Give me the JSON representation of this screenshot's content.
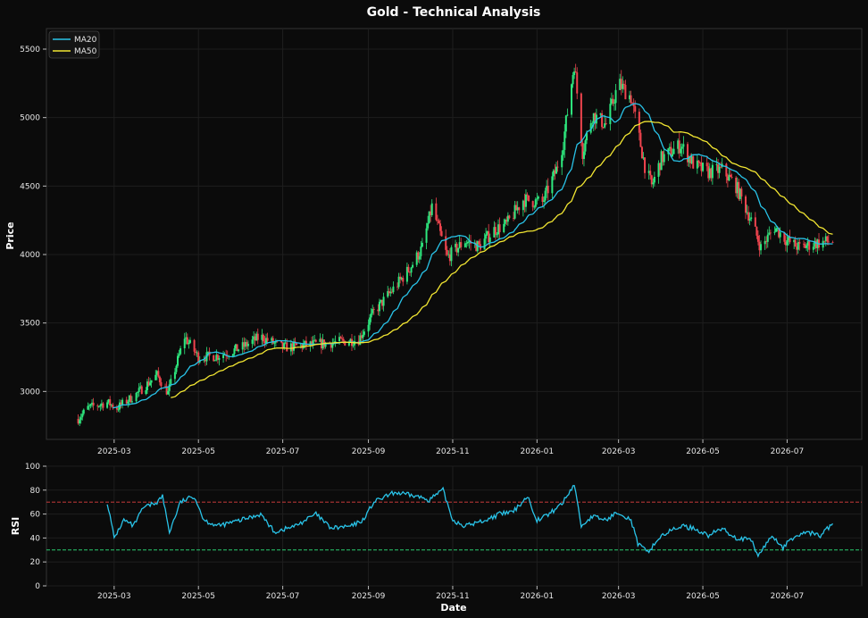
{
  "chart_data": [
    {
      "type": "candlestick",
      "title": "Gold - Technical Analysis",
      "xlabel": "",
      "ylabel": "Price",
      "ylim": [
        2650,
        5650
      ],
      "yticks": [
        3000,
        3500,
        4000,
        4500,
        5000,
        5500
      ],
      "xticks": [
        "2025-03",
        "2025-05",
        "2025-07",
        "2025-09",
        "2025-11",
        "2026-01",
        "2026-03",
        "2026-05",
        "2026-07"
      ],
      "xlim": [
        "2025-01-11",
        "2026-08-24"
      ],
      "grid": true,
      "legend": "top-left",
      "up_color": "#2ee87e",
      "down_color": "#f0444e",
      "anchors": [
        [
          "2025-02-03",
          2800
        ],
        [
          "2025-02-10",
          2880
        ],
        [
          "2025-02-24",
          2920
        ],
        [
          "2025-03-03",
          2880
        ],
        [
          "2025-03-17",
          2980
        ],
        [
          "2025-04-01",
          3120
        ],
        [
          "2025-04-09",
          2990
        ],
        [
          "2025-04-21",
          3400
        ],
        [
          "2025-05-01",
          3250
        ],
        [
          "2025-05-15",
          3260
        ],
        [
          "2025-06-01",
          3320
        ],
        [
          "2025-06-15",
          3400
        ],
        [
          "2025-07-01",
          3320
        ],
        [
          "2025-07-20",
          3340
        ],
        [
          "2025-08-10",
          3360
        ],
        [
          "2025-08-25",
          3380
        ],
        [
          "2025-09-05",
          3580
        ],
        [
          "2025-09-20",
          3760
        ],
        [
          "2025-10-01",
          3900
        ],
        [
          "2025-10-10",
          4050
        ],
        [
          "2025-10-17",
          4350
        ],
        [
          "2025-10-28",
          3980
        ],
        [
          "2025-11-10",
          4100
        ],
        [
          "2025-11-20",
          4060
        ],
        [
          "2025-12-01",
          4180
        ],
        [
          "2025-12-10",
          4220
        ],
        [
          "2025-12-22",
          4400
        ],
        [
          "2026-01-05",
          4380
        ],
        [
          "2026-01-15",
          4620
        ],
        [
          "2026-01-20",
          4820
        ],
        [
          "2026-01-28",
          5400
        ],
        [
          "2026-02-03",
          4750
        ],
        [
          "2026-02-10",
          5020
        ],
        [
          "2026-02-20",
          4950
        ],
        [
          "2026-03-01",
          5250
        ],
        [
          "2026-03-10",
          5150
        ],
        [
          "2026-03-20",
          4650
        ],
        [
          "2026-03-25",
          4500
        ],
        [
          "2026-04-01",
          4700
        ],
        [
          "2026-04-15",
          4800
        ],
        [
          "2026-04-25",
          4650
        ],
        [
          "2026-05-05",
          4600
        ],
        [
          "2026-05-15",
          4620
        ],
        [
          "2026-05-25",
          4500
        ],
        [
          "2026-06-05",
          4250
        ],
        [
          "2026-06-12",
          4050
        ],
        [
          "2026-06-22",
          4200
        ],
        [
          "2026-07-01",
          4100
        ],
        [
          "2026-07-10",
          4050
        ],
        [
          "2026-07-20",
          4080
        ],
        [
          "2026-08-03",
          4100
        ]
      ],
      "series": [
        {
          "name": "MA20",
          "color": "#29c3e8"
        },
        {
          "name": "MA50",
          "color": "#f2e632"
        }
      ]
    },
    {
      "type": "line",
      "title": "",
      "xlabel": "Date",
      "ylabel": "RSI",
      "ylim": [
        0,
        100
      ],
      "yticks": [
        0,
        20,
        40,
        60,
        80,
        100
      ],
      "xticks": [
        "2025-03",
        "2025-05",
        "2025-07",
        "2025-09",
        "2025-11",
        "2026-01",
        "2026-03",
        "2026-05",
        "2026-07"
      ],
      "xlim": [
        "2025-01-11",
        "2026-08-24"
      ],
      "grid": true,
      "reference_lines": [
        {
          "value": 70,
          "color": "#e04040"
        },
        {
          "value": 30,
          "color": "#2ee87e"
        }
      ],
      "series": [
        {
          "name": "",
          "color": "#29c3e8",
          "points": [
            [
              "2025-02-24",
              70
            ],
            [
              "2025-03-01",
              40
            ],
            [
              "2025-03-08",
              55
            ],
            [
              "2025-03-15",
              50
            ],
            [
              "2025-03-22",
              65
            ],
            [
              "2025-04-01",
              70
            ],
            [
              "2025-04-05",
              75
            ],
            [
              "2025-04-10",
              45
            ],
            [
              "2025-04-18",
              70
            ],
            [
              "2025-04-28",
              75
            ],
            [
              "2025-05-05",
              55
            ],
            [
              "2025-05-15",
              50
            ],
            [
              "2025-06-01",
              55
            ],
            [
              "2025-06-15",
              60
            ],
            [
              "2025-06-25",
              45
            ],
            [
              "2025-07-10",
              50
            ],
            [
              "2025-07-25",
              60
            ],
            [
              "2025-08-05",
              48
            ],
            [
              "2025-08-20",
              50
            ],
            [
              "2025-08-28",
              55
            ],
            [
              "2025-09-05",
              70
            ],
            [
              "2025-09-20",
              78
            ],
            [
              "2025-10-05",
              75
            ],
            [
              "2025-10-15",
              72
            ],
            [
              "2025-10-25",
              80
            ],
            [
              "2025-11-01",
              55
            ],
            [
              "2025-11-10",
              50
            ],
            [
              "2025-11-25",
              55
            ],
            [
              "2025-12-05",
              60
            ],
            [
              "2025-12-15",
              62
            ],
            [
              "2025-12-25",
              75
            ],
            [
              "2026-01-01",
              55
            ],
            [
              "2026-01-10",
              60
            ],
            [
              "2026-01-20",
              70
            ],
            [
              "2026-01-28",
              85
            ],
            [
              "2026-02-02",
              50
            ],
            [
              "2026-02-10",
              58
            ],
            [
              "2026-02-20",
              55
            ],
            [
              "2026-03-01",
              62
            ],
            [
              "2026-03-10",
              55
            ],
            [
              "2026-03-15",
              35
            ],
            [
              "2026-03-22",
              28
            ],
            [
              "2026-04-01",
              42
            ],
            [
              "2026-04-15",
              50
            ],
            [
              "2026-04-25",
              48
            ],
            [
              "2026-05-05",
              42
            ],
            [
              "2026-05-15",
              48
            ],
            [
              "2026-05-25",
              40
            ],
            [
              "2026-06-05",
              38
            ],
            [
              "2026-06-10",
              25
            ],
            [
              "2026-06-20",
              42
            ],
            [
              "2026-06-28",
              32
            ],
            [
              "2026-07-05",
              40
            ],
            [
              "2026-07-15",
              45
            ],
            [
              "2026-07-25",
              42
            ],
            [
              "2026-08-03",
              52
            ]
          ]
        }
      ]
    }
  ]
}
